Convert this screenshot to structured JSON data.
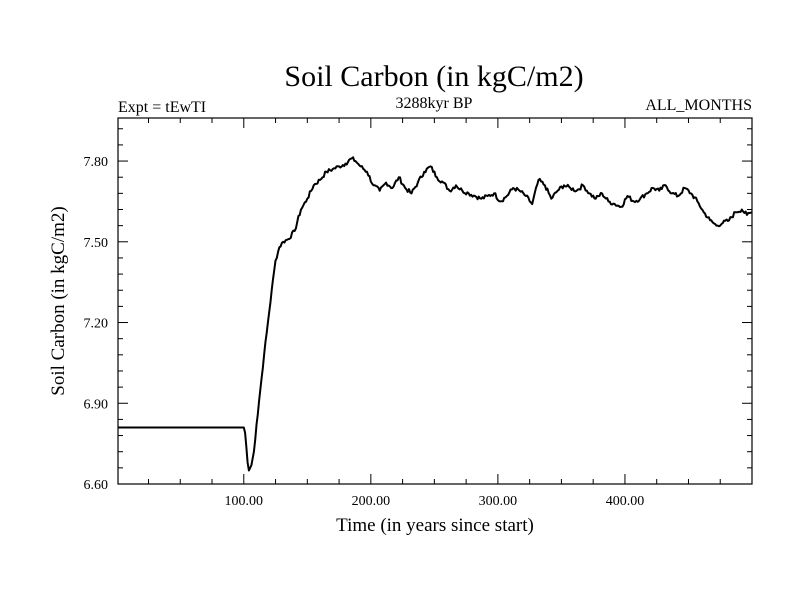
{
  "chart_data": {
    "type": "line",
    "title": "Soil Carbon (in kgC/m2)",
    "subtitle_left": "Expt = tEwTI",
    "subtitle_center": "3288kyr BP",
    "subtitle_right": "ALL_MONTHS",
    "xlabel": "Time (in years since start)",
    "ylabel": "Soil Carbon (in kgC/m2)",
    "xlim": [
      1,
      500
    ],
    "ylim": [
      6.6,
      7.96
    ],
    "x_ticks": [
      100,
      200,
      300,
      400
    ],
    "x_tick_labels": [
      "100.00",
      "200.00",
      "300.00",
      "400.00"
    ],
    "y_ticks": [
      6.6,
      6.9,
      7.2,
      7.5,
      7.8
    ],
    "y_tick_labels": [
      "6.60",
      "6.90",
      "7.20",
      "7.50",
      "7.80"
    ],
    "line_color": "#000000",
    "series": [
      {
        "name": "Soil Carbon",
        "x": [
          1,
          100,
          101,
          102,
          103,
          104,
          106,
          108,
          110,
          113,
          116,
          119,
          122,
          125,
          128,
          131,
          135,
          140,
          145,
          150,
          155,
          160,
          165,
          170,
          175,
          180,
          185,
          188,
          192,
          197,
          202,
          207,
          212,
          217,
          222,
          227,
          232,
          237,
          242,
          247,
          252,
          257,
          262,
          267,
          272,
          277,
          282,
          287,
          292,
          297,
          302,
          307,
          312,
          317,
          322,
          327,
          332,
          337,
          342,
          347,
          352,
          357,
          362,
          367,
          372,
          377,
          382,
          387,
          392,
          397,
          402,
          407,
          412,
          417,
          422,
          427,
          432,
          437,
          442,
          447,
          452,
          457,
          462,
          467,
          472,
          477,
          482,
          487,
          492,
          496,
          500
        ],
        "values": [
          6.81,
          6.81,
          6.79,
          6.74,
          6.68,
          6.65,
          6.67,
          6.72,
          6.82,
          6.95,
          7.08,
          7.2,
          7.32,
          7.43,
          7.48,
          7.5,
          7.51,
          7.54,
          7.62,
          7.66,
          7.71,
          7.73,
          7.76,
          7.77,
          7.78,
          7.79,
          7.81,
          7.8,
          7.78,
          7.76,
          7.71,
          7.69,
          7.72,
          7.7,
          7.74,
          7.7,
          7.68,
          7.72,
          7.76,
          7.78,
          7.74,
          7.72,
          7.69,
          7.71,
          7.69,
          7.68,
          7.67,
          7.66,
          7.67,
          7.68,
          7.65,
          7.67,
          7.7,
          7.69,
          7.67,
          7.64,
          7.73,
          7.71,
          7.66,
          7.69,
          7.71,
          7.7,
          7.69,
          7.71,
          7.68,
          7.66,
          7.68,
          7.65,
          7.64,
          7.63,
          7.67,
          7.65,
          7.66,
          7.68,
          7.7,
          7.69,
          7.71,
          7.68,
          7.67,
          7.7,
          7.68,
          7.65,
          7.61,
          7.58,
          7.56,
          7.57,
          7.58,
          7.61,
          7.62,
          7.6,
          7.61
        ]
      }
    ]
  }
}
